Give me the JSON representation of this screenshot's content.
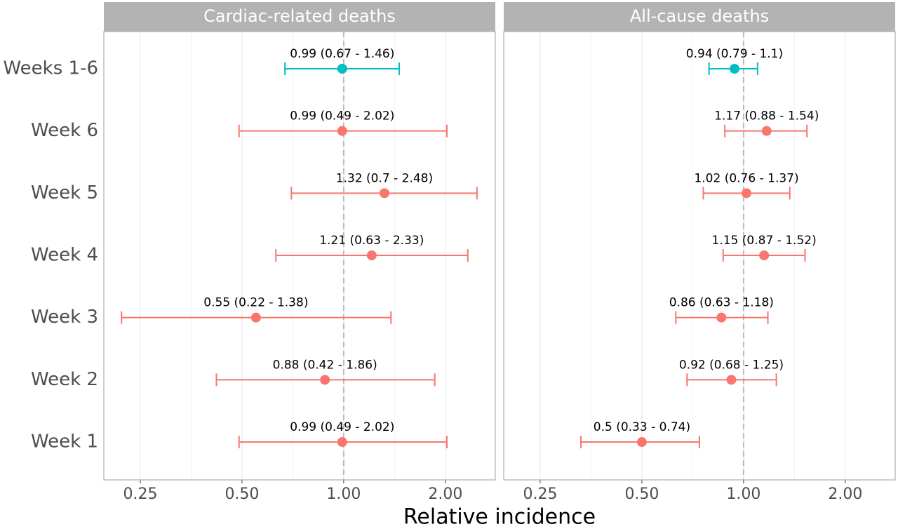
{
  "chart_data": {
    "type": "forest",
    "xlabel": "Relative incidence",
    "log_x": true,
    "grid": true,
    "reference_line": 1,
    "categories": [
      "Weeks 1-6",
      "Week 6",
      "Week 5",
      "Week 4",
      "Week 3",
      "Week 2",
      "Week 1"
    ],
    "xlim": [
      0.195,
      2.81
    ],
    "xticks": [
      0.25,
      {
        "value": 0.5,
        "label": "0.50"
      },
      {
        "value": 1,
        "label": "1.00"
      },
      {
        "value": 2,
        "label": "2.00"
      }
    ],
    "panels": [
      {
        "title": "Cardiac-related deaths",
        "estimates": [
          0.99,
          0.99,
          1.32,
          1.21,
          0.55,
          0.88,
          0.99
        ],
        "lower": [
          0.67,
          0.49,
          0.7,
          0.63,
          0.22,
          0.42,
          0.49
        ],
        "upper": [
          1.46,
          2.02,
          2.48,
          2.33,
          1.38,
          1.86,
          2.02
        ],
        "value_labels": [
          "0.99 (0.67 - 1.46)",
          "0.99 (0.49 - 2.02)",
          "1.32 (0.7 - 2.48)",
          "1.21 (0.63 - 2.33)",
          "0.55 (0.22 - 1.38)",
          "0.88 (0.42 - 1.86)",
          "0.99 (0.49 - 2.02)"
        ],
        "colors": [
          "#00bfc4",
          "#f8766d",
          "#f8766d",
          "#f8766d",
          "#f8766d",
          "#f8766d",
          "#f8766d"
        ]
      },
      {
        "title": "All-cause deaths",
        "estimates": [
          0.94,
          1.17,
          1.02,
          1.15,
          0.86,
          0.92,
          0.5
        ],
        "lower": [
          0.79,
          0.88,
          0.76,
          0.87,
          0.63,
          0.68,
          0.33
        ],
        "upper": [
          1.1,
          1.54,
          1.37,
          1.52,
          1.18,
          1.25,
          0.74
        ],
        "value_labels": [
          "0.94 (0.79 - 1.1)",
          "1.17 (0.88 - 1.54)",
          "1.02 (0.76 - 1.37)",
          "1.15 (0.87 - 1.52)",
          "0.86 (0.63 - 1.18)",
          "0.92 (0.68 - 1.25)",
          "0.5 (0.33 - 0.74)"
        ],
        "colors": [
          "#00bfc4",
          "#f8766d",
          "#f8766d",
          "#f8766d",
          "#f8766d",
          "#f8766d",
          "#f8766d"
        ]
      }
    ]
  }
}
